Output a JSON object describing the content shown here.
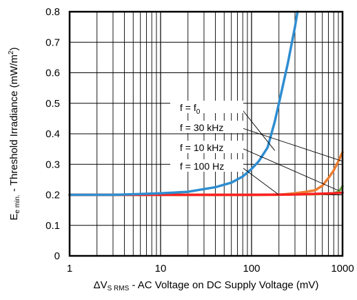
{
  "chart_data": {
    "type": "line",
    "xscale": "log",
    "xlim": [
      1,
      1000
    ],
    "ylim": [
      0,
      0.8
    ],
    "grid": true,
    "x_ticks": [
      1,
      10,
      100,
      1000
    ],
    "x_tick_labels": [
      "1",
      "10",
      "100",
      "1000"
    ],
    "y_ticks": [
      0,
      0.1,
      0.2,
      0.3,
      0.4,
      0.5,
      0.6,
      0.7,
      0.8
    ],
    "y_tick_labels": [
      "0",
      "0.1",
      "0.2",
      "0.3",
      "0.4",
      "0.5",
      "0.6",
      "0.7",
      "0.8"
    ],
    "xlabel": {
      "prefix": "ΔV",
      "sub": "S RMS",
      "suffix": " - AC Voltage on DC Supply Voltage (mV)"
    },
    "ylabel": {
      "prefix": "E",
      "sub": "e min.",
      "middle": " - Threshold Irradiance (mW/m",
      "sup": "2",
      "suffix": ")"
    },
    "series": [
      {
        "name": "f = 30 kHz",
        "color": "#ed7d31",
        "x": [
          1,
          10,
          100,
          200,
          300,
          400,
          500,
          600,
          700,
          800,
          900,
          1000
        ],
        "y": [
          0.2,
          0.2,
          0.2,
          0.2,
          0.205,
          0.21,
          0.215,
          0.23,
          0.255,
          0.28,
          0.31,
          0.34
        ]
      },
      {
        "name": "f = 10 kHz",
        "color": "#70ad47",
        "x": [
          1,
          10,
          100,
          500,
          800,
          900,
          950,
          1000
        ],
        "y": [
          0.2,
          0.2,
          0.2,
          0.202,
          0.205,
          0.21,
          0.218,
          0.228
        ]
      },
      {
        "name": "f = 100 Hz",
        "color": "#ff2020",
        "x": [
          1,
          10,
          100,
          300,
          500,
          800,
          1000
        ],
        "y": [
          0.2,
          0.2,
          0.2,
          0.201,
          0.203,
          0.205,
          0.207
        ]
      },
      {
        "name": "f = f0",
        "color": "#2e8dd0",
        "x": [
          1,
          3,
          5,
          10,
          20,
          40,
          60,
          80,
          100,
          120,
          150,
          180,
          200,
          250,
          300,
          320
        ],
        "y": [
          0.2,
          0.2,
          0.202,
          0.205,
          0.21,
          0.225,
          0.24,
          0.26,
          0.285,
          0.31,
          0.355,
          0.44,
          0.5,
          0.63,
          0.75,
          0.8
        ]
      }
    ],
    "annotations": [
      {
        "text": "f = f",
        "sub": "0",
        "series": "f = f0",
        "point": [
          180,
          0.345
        ]
      },
      {
        "text": "f = 30 kHz",
        "series": "f = 30 kHz",
        "point": [
          1000,
          0.31
        ]
      },
      {
        "text": "f = 10 kHz",
        "series": "f = 10 kHz",
        "point": [
          920,
          0.213
        ]
      },
      {
        "text": "f = 100 Hz",
        "series": "f = 100 Hz",
        "point": [
          200,
          0.2
        ]
      }
    ]
  }
}
